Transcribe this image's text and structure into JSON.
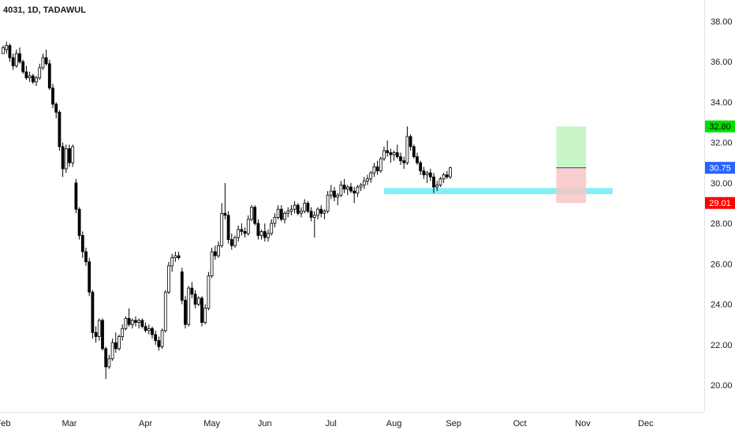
{
  "chart_data": {
    "type": "candlestick",
    "title": "4031, 1D, TADAWUL",
    "y_axis": {
      "ylim": [
        19.0,
        39.0
      ],
      "ticks": [
        20,
        22,
        24,
        26,
        28,
        30,
        32,
        34,
        36,
        38
      ],
      "tick_labels": [
        "20.00",
        "22.00",
        "24.00",
        "26.00",
        "28.00",
        "30.00",
        "32.00",
        "34.00",
        "36.00",
        "38.00"
      ],
      "position": "right"
    },
    "x_axis": {
      "labels": [
        "Feb",
        "Mar",
        "Apr",
        "May",
        "Jun",
        "Jul",
        "Aug",
        "Sep",
        "Oct",
        "Nov",
        "Dec"
      ],
      "label_day_index": [
        0,
        20,
        43,
        63,
        79,
        99,
        118,
        136,
        156,
        175,
        194
      ]
    },
    "ohlc_columns": [
      "open",
      "high",
      "low",
      "close"
    ],
    "candles": [
      [
        36.4,
        36.8,
        36.4,
        36.7
      ],
      [
        36.6,
        37.0,
        36.4,
        36.8
      ],
      [
        36.8,
        36.9,
        36.0,
        36.2
      ],
      [
        36.2,
        36.4,
        35.6,
        35.8
      ],
      [
        35.8,
        36.6,
        35.7,
        36.4
      ],
      [
        36.4,
        36.7,
        35.9,
        36.0
      ],
      [
        36.0,
        36.1,
        35.4,
        35.5
      ],
      [
        35.5,
        35.8,
        35.1,
        35.2
      ],
      [
        35.2,
        35.5,
        35.0,
        35.3
      ],
      [
        35.3,
        35.4,
        34.9,
        35.0
      ],
      [
        35.0,
        35.3,
        34.8,
        35.2
      ],
      [
        35.2,
        35.9,
        35.1,
        35.7
      ],
      [
        35.7,
        36.4,
        35.6,
        36.2
      ],
      [
        36.2,
        36.6,
        35.8,
        35.9
      ],
      [
        35.9,
        36.1,
        34.6,
        34.7
      ],
      [
        34.7,
        34.9,
        33.7,
        33.9
      ],
      [
        33.9,
        34.0,
        33.2,
        33.5
      ],
      [
        33.5,
        33.6,
        31.6,
        31.8
      ],
      [
        31.8,
        32.0,
        30.3,
        30.7
      ],
      [
        30.7,
        31.9,
        30.5,
        31.7
      ],
      [
        31.7,
        31.9,
        30.8,
        31.0
      ],
      [
        31.0,
        31.9,
        30.8,
        31.8
      ],
      [
        30.0,
        30.2,
        28.5,
        28.7
      ],
      [
        28.7,
        28.8,
        27.2,
        27.4
      ],
      [
        27.4,
        27.6,
        26.3,
        26.6
      ],
      [
        26.6,
        26.8,
        25.9,
        26.1
      ],
      [
        26.1,
        26.3,
        24.4,
        24.6
      ],
      [
        24.6,
        24.7,
        22.3,
        22.6
      ],
      [
        22.6,
        22.9,
        22.1,
        22.4
      ],
      [
        22.4,
        23.3,
        22.2,
        23.2
      ],
      [
        23.2,
        23.3,
        21.7,
        21.8
      ],
      [
        21.8,
        21.9,
        20.3,
        20.9
      ],
      [
        20.9,
        21.5,
        20.8,
        21.3
      ],
      [
        21.3,
        22.3,
        21.2,
        22.1
      ],
      [
        22.1,
        22.6,
        21.6,
        21.8
      ],
      [
        21.8,
        22.5,
        21.7,
        22.4
      ],
      [
        22.4,
        23.0,
        22.2,
        22.8
      ],
      [
        22.8,
        23.4,
        22.7,
        23.3
      ],
      [
        23.3,
        23.8,
        22.9,
        23.0
      ],
      [
        23.0,
        23.3,
        22.8,
        23.2
      ],
      [
        23.2,
        23.4,
        22.9,
        23.1
      ],
      [
        23.1,
        23.3,
        22.8,
        23.2
      ],
      [
        23.2,
        23.3,
        22.8,
        22.9
      ],
      [
        22.9,
        23.1,
        22.6,
        22.7
      ],
      [
        22.7,
        23.0,
        22.5,
        22.8
      ],
      [
        22.8,
        22.9,
        22.3,
        22.5
      ],
      [
        22.5,
        22.7,
        22.0,
        22.2
      ],
      [
        22.2,
        22.4,
        21.7,
        21.9
      ],
      [
        21.9,
        22.8,
        21.8,
        22.7
      ],
      [
        22.7,
        24.7,
        22.6,
        24.6
      ],
      [
        24.6,
        26.1,
        24.5,
        25.9
      ],
      [
        25.9,
        26.5,
        25.6,
        26.3
      ],
      [
        26.3,
        26.6,
        26.1,
        26.4
      ],
      [
        26.4,
        26.6,
        26.2,
        26.3
      ],
      [
        25.6,
        25.8,
        24.0,
        24.2
      ],
      [
        24.2,
        24.4,
        22.8,
        23.0
      ],
      [
        23.0,
        24.9,
        22.9,
        24.8
      ],
      [
        24.8,
        25.1,
        24.3,
        24.5
      ],
      [
        24.5,
        24.7,
        23.8,
        24.0
      ],
      [
        24.0,
        24.4,
        23.9,
        24.3
      ],
      [
        24.3,
        24.4,
        22.9,
        23.1
      ],
      [
        23.1,
        24.0,
        23.0,
        23.8
      ],
      [
        23.8,
        25.6,
        23.7,
        25.4
      ],
      [
        25.4,
        26.8,
        25.3,
        26.6
      ],
      [
        26.6,
        26.9,
        26.2,
        26.4
      ],
      [
        26.4,
        27.1,
        26.3,
        26.9
      ],
      [
        26.9,
        29.0,
        26.8,
        28.5
      ],
      [
        28.5,
        30.0,
        28.2,
        28.4
      ],
      [
        28.4,
        28.6,
        27.0,
        27.2
      ],
      [
        27.2,
        27.5,
        26.7,
        26.9
      ],
      [
        26.9,
        27.4,
        26.8,
        27.3
      ],
      [
        27.3,
        27.9,
        27.1,
        27.7
      ],
      [
        27.7,
        28.0,
        27.4,
        27.6
      ],
      [
        27.6,
        27.8,
        27.3,
        27.5
      ],
      [
        27.5,
        28.4,
        27.4,
        28.2
      ],
      [
        28.2,
        28.9,
        28.1,
        28.8
      ],
      [
        28.8,
        28.9,
        27.9,
        28.0
      ],
      [
        28.0,
        28.2,
        27.2,
        27.4
      ],
      [
        27.4,
        27.7,
        27.2,
        27.6
      ],
      [
        27.6,
        28.0,
        27.1,
        27.3
      ],
      [
        27.3,
        27.7,
        27.1,
        27.5
      ],
      [
        27.5,
        28.2,
        27.4,
        28.0
      ],
      [
        28.0,
        28.5,
        27.8,
        28.3
      ],
      [
        28.3,
        28.9,
        28.2,
        28.7
      ],
      [
        28.7,
        28.9,
        28.1,
        28.2
      ],
      [
        28.2,
        28.6,
        28.0,
        28.5
      ],
      [
        28.5,
        28.8,
        28.3,
        28.6
      ],
      [
        28.6,
        28.9,
        28.4,
        28.7
      ],
      [
        28.7,
        29.1,
        28.5,
        28.9
      ],
      [
        28.9,
        29.0,
        28.4,
        28.5
      ],
      [
        28.5,
        28.8,
        28.3,
        28.6
      ],
      [
        28.6,
        29.2,
        28.5,
        29.0
      ],
      [
        29.0,
        29.1,
        28.5,
        28.6
      ],
      [
        28.6,
        28.8,
        28.1,
        28.3
      ],
      [
        28.3,
        28.6,
        27.3,
        28.4
      ],
      [
        28.4,
        28.8,
        28.2,
        28.7
      ],
      [
        28.7,
        28.9,
        28.3,
        28.5
      ],
      [
        28.5,
        28.7,
        28.2,
        28.6
      ],
      [
        28.6,
        29.6,
        28.5,
        29.4
      ],
      [
        29.4,
        29.9,
        29.2,
        29.6
      ],
      [
        29.6,
        29.8,
        29.1,
        29.3
      ],
      [
        29.3,
        29.5,
        28.9,
        29.4
      ],
      [
        29.4,
        30.1,
        29.3,
        29.9
      ],
      [
        29.9,
        30.2,
        29.5,
        29.7
      ],
      [
        29.7,
        29.9,
        29.4,
        29.8
      ],
      [
        29.8,
        30.0,
        29.5,
        29.6
      ],
      [
        29.6,
        29.8,
        29.0,
        29.5
      ],
      [
        29.5,
        29.9,
        29.3,
        29.8
      ],
      [
        29.8,
        30.0,
        29.6,
        29.9
      ],
      [
        29.9,
        30.3,
        29.7,
        30.1
      ],
      [
        30.1,
        30.4,
        29.9,
        30.2
      ],
      [
        30.2,
        30.6,
        30.0,
        30.5
      ],
      [
        30.5,
        31.0,
        30.3,
        30.8
      ],
      [
        30.8,
        31.1,
        30.4,
        30.6
      ],
      [
        30.6,
        31.3,
        30.5,
        31.2
      ],
      [
        31.2,
        31.8,
        31.1,
        31.6
      ],
      [
        31.6,
        32.1,
        31.3,
        31.5
      ],
      [
        31.5,
        31.7,
        31.0,
        31.4
      ],
      [
        31.4,
        31.6,
        31.1,
        31.5
      ],
      [
        31.5,
        31.9,
        31.2,
        31.3
      ],
      [
        31.3,
        31.5,
        30.9,
        31.1
      ],
      [
        31.1,
        31.3,
        30.7,
        31.0
      ],
      [
        31.0,
        32.8,
        30.9,
        32.3
      ],
      [
        32.3,
        32.4,
        31.6,
        31.8
      ],
      [
        31.8,
        31.9,
        31.2,
        31.3
      ],
      [
        31.3,
        31.5,
        30.9,
        31.0
      ],
      [
        31.0,
        31.1,
        30.4,
        30.6
      ],
      [
        30.6,
        30.8,
        30.2,
        30.4
      ],
      [
        30.4,
        30.6,
        30.0,
        30.5
      ],
      [
        30.5,
        30.7,
        30.1,
        30.3
      ],
      [
        30.3,
        30.5,
        29.5,
        29.8
      ],
      [
        29.8,
        30.1,
        29.6,
        29.9
      ],
      [
        29.9,
        30.3,
        29.8,
        30.2
      ],
      [
        30.2,
        30.5,
        30.0,
        30.4
      ],
      [
        30.4,
        30.6,
        30.2,
        30.3
      ],
      [
        30.3,
        30.8,
        30.2,
        30.75
      ]
    ],
    "current_price": 30.75,
    "price_labels": [
      {
        "value": 32.8,
        "text": "32.80",
        "color": "#00e000",
        "text_color": "#000000"
      },
      {
        "value": 30.75,
        "text": "30.75",
        "color": "#2962ff",
        "text_color": "#ffffff"
      },
      {
        "value": 29.01,
        "text": "29.01",
        "color": "#ff0000",
        "text_color": "#ffffff"
      }
    ],
    "support_zone": {
      "from_day": 115,
      "to_day": 184,
      "y_low": 29.45,
      "y_high": 29.75,
      "color": "#80f0f8"
    },
    "long_position": {
      "from_day": 167,
      "to_day": 176,
      "entry": 30.75,
      "target": 32.8,
      "stop": 29.01,
      "profit_color": "#c8f5c8",
      "loss_color": "#f8c6c6",
      "entry_line_color": "#1e40d0"
    },
    "colors": {
      "up_body": "#ffffff",
      "down_body": "#000000",
      "outline": "#000000"
    },
    "grid": false
  }
}
